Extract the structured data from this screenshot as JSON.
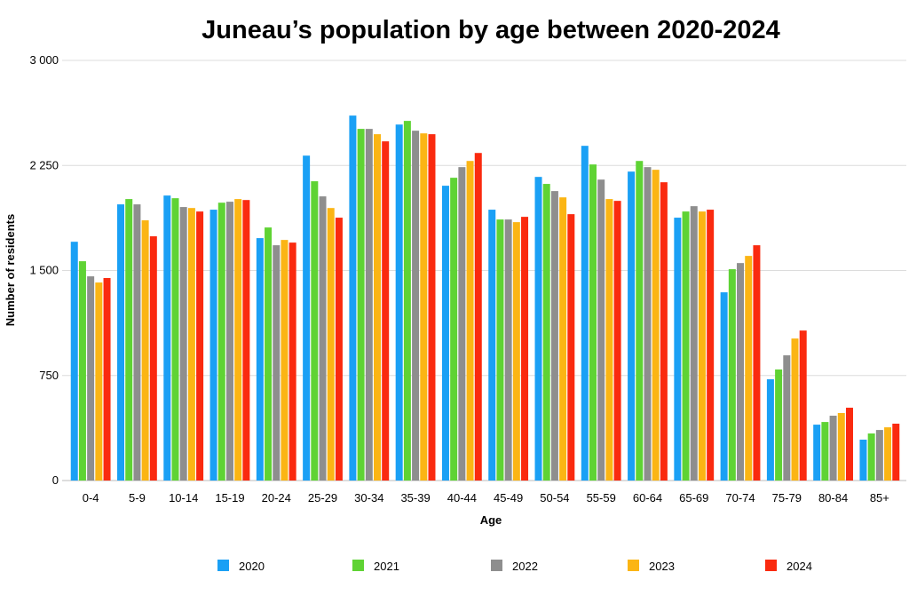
{
  "chart_data": {
    "type": "bar",
    "title": "Juneau’s population by age between 2020-2024",
    "xlabel": "Age",
    "ylabel": "Number of residents",
    "ylim": [
      0,
      3000
    ],
    "yticks": [
      0,
      750,
      1500,
      2250,
      3000
    ],
    "ytick_labels": [
      "0",
      "750",
      "1 500",
      "2 250",
      "3 000"
    ],
    "grid": true,
    "legend_position": "bottom",
    "categories": [
      "0-4",
      "5-9",
      "10-14",
      "15-19",
      "20-24",
      "25-29",
      "30-34",
      "35-39",
      "40-44",
      "45-49",
      "50-54",
      "55-59",
      "60-64",
      "65-69",
      "70-74",
      "75-79",
      "80-84",
      "85+"
    ],
    "series": [
      {
        "name": "2020",
        "color": "#1aa0f5",
        "values": [
          1705,
          1972,
          2035,
          1934,
          1731,
          2320,
          2606,
          2542,
          2105,
          1934,
          2168,
          2390,
          2206,
          1877,
          1344,
          723,
          399,
          292
        ]
      },
      {
        "name": "2021",
        "color": "#5fd334",
        "values": [
          1566,
          2010,
          2016,
          1984,
          1807,
          2137,
          2511,
          2568,
          2162,
          1864,
          2118,
          2257,
          2282,
          1921,
          1509,
          793,
          418,
          336
        ]
      },
      {
        "name": "2022",
        "color": "#8e8e8e",
        "values": [
          1458,
          1972,
          1953,
          1991,
          1680,
          2029,
          2511,
          2498,
          2238,
          1864,
          2067,
          2149,
          2238,
          1959,
          1553,
          894,
          463,
          361
        ]
      },
      {
        "name": "2023",
        "color": "#fbb514",
        "values": [
          1414,
          1858,
          1946,
          2010,
          1718,
          1946,
          2473,
          2479,
          2282,
          1845,
          2022,
          2010,
          2219,
          1921,
          1604,
          1014,
          482,
          380
        ]
      },
      {
        "name": "2024",
        "color": "#fa2a0f",
        "values": [
          1446,
          1744,
          1921,
          2003,
          1699,
          1877,
          2422,
          2473,
          2339,
          1883,
          1902,
          1997,
          2130,
          1934,
          1680,
          1071,
          520,
          406
        ]
      }
    ]
  }
}
